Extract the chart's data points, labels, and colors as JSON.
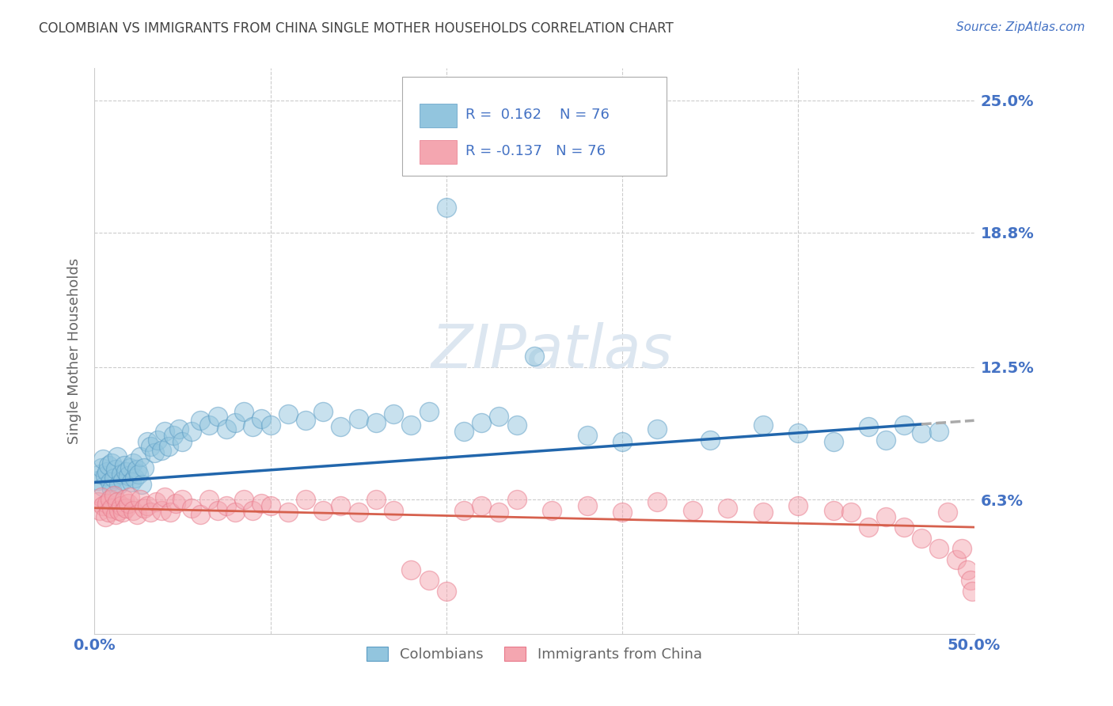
{
  "title": "COLOMBIAN VS IMMIGRANTS FROM CHINA SINGLE MOTHER HOUSEHOLDS CORRELATION CHART",
  "source": "Source: ZipAtlas.com",
  "ylabel": "Single Mother Households",
  "xlim": [
    0.0,
    0.5
  ],
  "ylim": [
    0.0,
    0.265
  ],
  "ytick_labels": [
    "6.3%",
    "12.5%",
    "18.8%",
    "25.0%"
  ],
  "ytick_values": [
    0.063,
    0.125,
    0.188,
    0.25
  ],
  "r_blue": 0.162,
  "n_blue": 76,
  "r_pink": -0.137,
  "n_pink": 76,
  "blue_color": "#92c5de",
  "pink_color": "#f4a6b0",
  "blue_edge_color": "#5b9cc4",
  "pink_edge_color": "#e8788a",
  "blue_line_color": "#2166ac",
  "pink_line_color": "#d6604d",
  "dashed_line_color": "#aaaaaa",
  "watermark": "ZIPatlas",
  "legend_label_blue": "Colombians",
  "legend_label_pink": "Immigrants from China",
  "blue_scatter_x": [
    0.002,
    0.003,
    0.004,
    0.005,
    0.005,
    0.006,
    0.007,
    0.008,
    0.009,
    0.01,
    0.01,
    0.011,
    0.012,
    0.013,
    0.014,
    0.015,
    0.016,
    0.017,
    0.018,
    0.019,
    0.02,
    0.021,
    0.022,
    0.023,
    0.024,
    0.025,
    0.026,
    0.027,
    0.028,
    0.03,
    0.032,
    0.034,
    0.036,
    0.038,
    0.04,
    0.042,
    0.045,
    0.048,
    0.05,
    0.055,
    0.06,
    0.065,
    0.07,
    0.075,
    0.08,
    0.085,
    0.09,
    0.095,
    0.1,
    0.11,
    0.12,
    0.13,
    0.14,
    0.15,
    0.16,
    0.17,
    0.18,
    0.19,
    0.2,
    0.21,
    0.22,
    0.23,
    0.24,
    0.25,
    0.28,
    0.3,
    0.32,
    0.35,
    0.38,
    0.4,
    0.42,
    0.44,
    0.45,
    0.46,
    0.47,
    0.48
  ],
  "blue_scatter_y": [
    0.072,
    0.075,
    0.078,
    0.069,
    0.082,
    0.074,
    0.076,
    0.079,
    0.071,
    0.068,
    0.08,
    0.073,
    0.077,
    0.083,
    0.07,
    0.075,
    0.072,
    0.079,
    0.076,
    0.074,
    0.078,
    0.071,
    0.08,
    0.073,
    0.077,
    0.075,
    0.083,
    0.07,
    0.078,
    0.09,
    0.088,
    0.085,
    0.091,
    0.086,
    0.095,
    0.088,
    0.093,
    0.096,
    0.09,
    0.095,
    0.1,
    0.098,
    0.102,
    0.096,
    0.099,
    0.104,
    0.097,
    0.101,
    0.098,
    0.103,
    0.1,
    0.104,
    0.097,
    0.101,
    0.099,
    0.103,
    0.098,
    0.104,
    0.2,
    0.095,
    0.099,
    0.102,
    0.098,
    0.13,
    0.093,
    0.09,
    0.096,
    0.091,
    0.098,
    0.094,
    0.09,
    0.097,
    0.091,
    0.098,
    0.094,
    0.095
  ],
  "pink_scatter_x": [
    0.002,
    0.003,
    0.004,
    0.005,
    0.006,
    0.007,
    0.008,
    0.009,
    0.01,
    0.011,
    0.012,
    0.013,
    0.014,
    0.015,
    0.016,
    0.017,
    0.018,
    0.019,
    0.02,
    0.022,
    0.024,
    0.026,
    0.028,
    0.03,
    0.032,
    0.035,
    0.038,
    0.04,
    0.043,
    0.046,
    0.05,
    0.055,
    0.06,
    0.065,
    0.07,
    0.075,
    0.08,
    0.085,
    0.09,
    0.095,
    0.1,
    0.11,
    0.12,
    0.13,
    0.14,
    0.15,
    0.16,
    0.17,
    0.18,
    0.19,
    0.2,
    0.21,
    0.22,
    0.23,
    0.24,
    0.26,
    0.28,
    0.3,
    0.32,
    0.34,
    0.36,
    0.38,
    0.4,
    0.42,
    0.43,
    0.44,
    0.45,
    0.46,
    0.47,
    0.48,
    0.485,
    0.49,
    0.493,
    0.496,
    0.498,
    0.499
  ],
  "pink_scatter_y": [
    0.062,
    0.058,
    0.064,
    0.06,
    0.055,
    0.061,
    0.057,
    0.063,
    0.059,
    0.065,
    0.056,
    0.062,
    0.058,
    0.06,
    0.057,
    0.063,
    0.059,
    0.061,
    0.064,
    0.058,
    0.056,
    0.063,
    0.059,
    0.06,
    0.057,
    0.062,
    0.058,
    0.064,
    0.057,
    0.061,
    0.063,
    0.059,
    0.056,
    0.063,
    0.058,
    0.06,
    0.057,
    0.063,
    0.058,
    0.061,
    0.06,
    0.057,
    0.063,
    0.058,
    0.06,
    0.057,
    0.063,
    0.058,
    0.03,
    0.025,
    0.02,
    0.058,
    0.06,
    0.057,
    0.063,
    0.058,
    0.06,
    0.057,
    0.062,
    0.058,
    0.059,
    0.057,
    0.06,
    0.058,
    0.057,
    0.05,
    0.055,
    0.05,
    0.045,
    0.04,
    0.057,
    0.035,
    0.04,
    0.03,
    0.025,
    0.02
  ],
  "grid_color": "#cccccc",
  "bg_color": "#ffffff",
  "title_color": "#444444",
  "axis_label_color": "#666666",
  "tick_color": "#4472c4",
  "watermark_color": "#dce6f0",
  "watermark_fontsize": 55,
  "blue_intercept": 0.071,
  "blue_slope": 0.058,
  "pink_intercept": 0.059,
  "pink_slope": -0.018
}
